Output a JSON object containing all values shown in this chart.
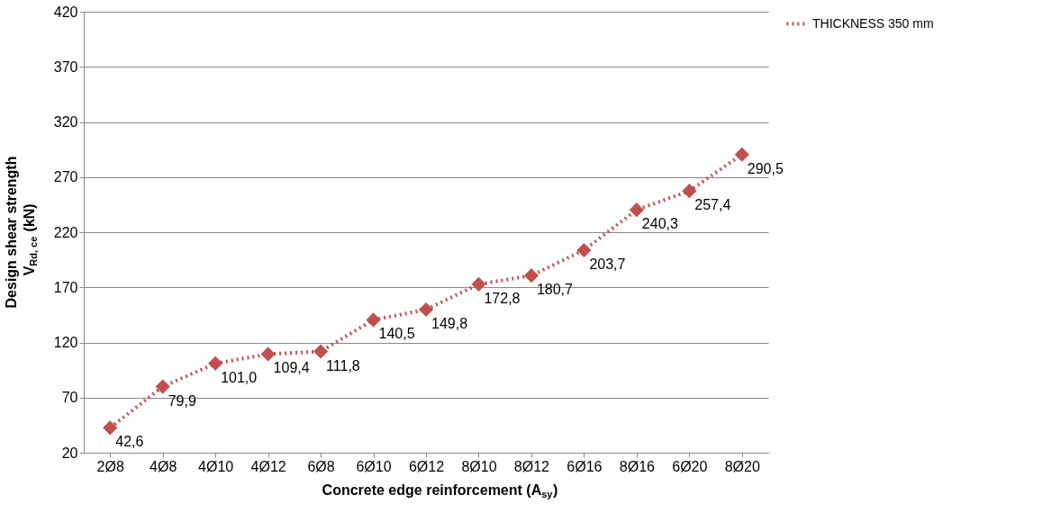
{
  "chart_data": {
    "type": "line",
    "xlabel": "Concrete edge reinforcement (A$_{sy}$)",
    "ylabel": [
      "Design shear strength",
      "V$_{Rd, ce}$ (kN)"
    ],
    "categories": [
      "2Ø8",
      "4Ø8",
      "4Ø10",
      "4Ø12",
      "6Ø8",
      "6Ø10",
      "6Ø12",
      "8Ø10",
      "8Ø12",
      "6Ø16",
      "8Ø16",
      "6Ø20",
      "8Ø20"
    ],
    "series": [
      {
        "name": "THICKNESS 350 mm",
        "color": "#c0504d",
        "values": [
          42.6,
          79.9,
          101.0,
          109.4,
          111.8,
          140.5,
          149.8,
          172.8,
          180.7,
          203.7,
          240.3,
          257.4,
          290.5
        ]
      }
    ],
    "value_labels": [
      "42,6",
      "79,9",
      "101,0",
      "109,4",
      "111,8",
      "140,5",
      "149,8",
      "172,8",
      "180,7",
      "203,7",
      "240,3",
      "257,4",
      "290,5"
    ],
    "ylim": [
      20,
      420
    ],
    "yticks": [
      20,
      70,
      120,
      170,
      220,
      270,
      320,
      370,
      420
    ],
    "grid": "y",
    "legend": "right",
    "marker": "diamond",
    "line_style": "dotted"
  }
}
